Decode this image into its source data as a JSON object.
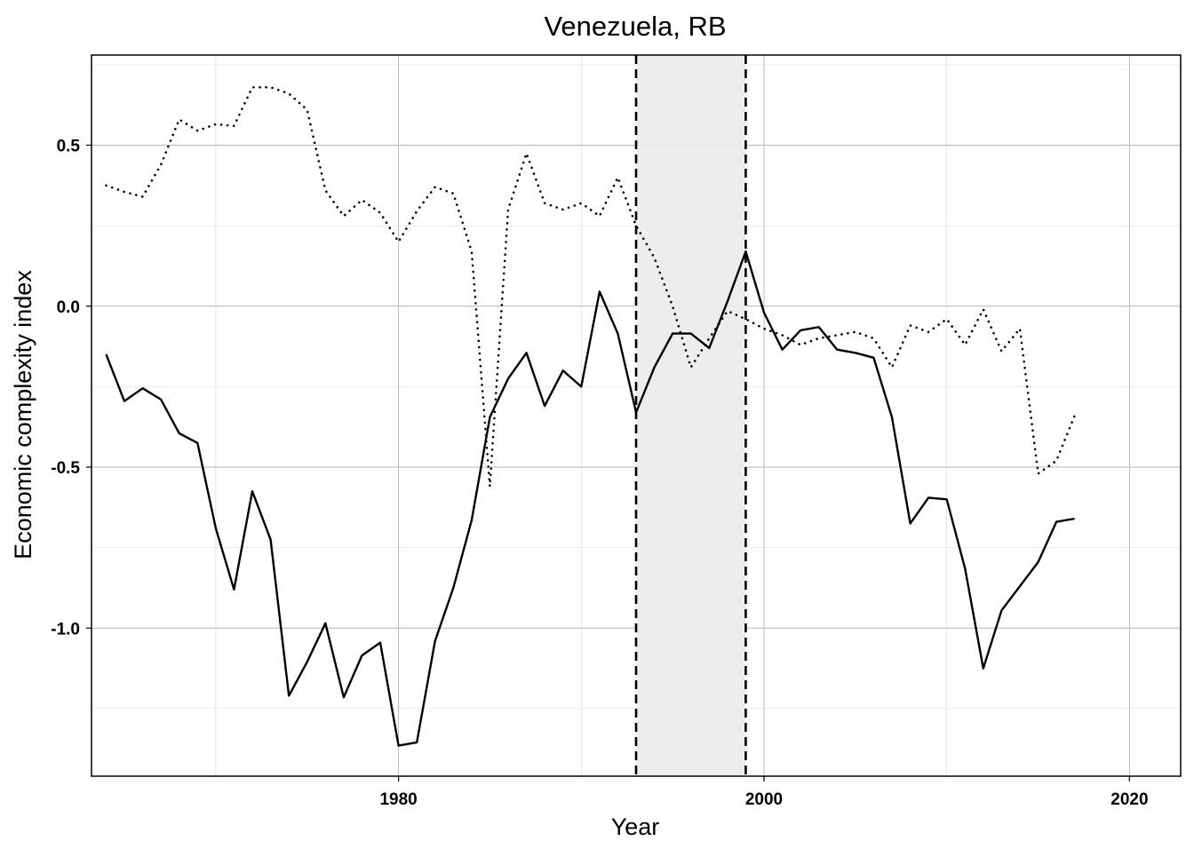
{
  "chart_data": {
    "type": "line",
    "title": "Venezuela, RB",
    "xlabel": "Year",
    "ylabel": "Economic complexity index",
    "xlim": [
      1963.2,
      2022.8
    ],
    "ylim": [
      -1.46,
      0.78
    ],
    "x_ticks": [
      1980,
      2000,
      2020
    ],
    "x_tick_labels": [
      "1980",
      "2000",
      "2020"
    ],
    "y_ticks": [
      0.5,
      0.0,
      -0.5,
      -1.0
    ],
    "y_tick_labels": [
      "0.5",
      "0.0",
      "-0.5",
      "-1.0"
    ],
    "grid": true,
    "legend": "none",
    "shaded_region": {
      "x_start": 1993.0,
      "x_end": 1999.0,
      "color": "#ebebeb",
      "border_style": "dashed"
    },
    "series": [
      {
        "style": "solid",
        "color": "#000000",
        "x": [
          1964,
          1965,
          1966,
          1967,
          1968,
          1969,
          1970,
          1971,
          1972,
          1973,
          1974,
          1975,
          1976,
          1977,
          1978,
          1979,
          1980,
          1981,
          1982,
          1983,
          1984,
          1985,
          1986,
          1987,
          1988,
          1989,
          1990,
          1991,
          1992,
          1993,
          1994,
          1995,
          1996,
          1997,
          1998,
          1999,
          2000,
          2001,
          2002,
          2003,
          2004,
          2005,
          2006,
          2007,
          2008,
          2009,
          2010,
          2011,
          2012,
          2013,
          2014,
          2015,
          2016,
          2017
        ],
        "y": [
          -0.15,
          -0.295,
          -0.255,
          -0.29,
          -0.395,
          -0.425,
          -0.69,
          -0.88,
          -0.575,
          -0.725,
          -1.21,
          -1.105,
          -0.985,
          -1.215,
          -1.085,
          -1.045,
          -1.365,
          -1.355,
          -1.04,
          -0.875,
          -0.665,
          -0.345,
          -0.225,
          -0.145,
          -0.31,
          -0.2,
          -0.25,
          0.045,
          -0.085,
          -0.33,
          -0.19,
          -0.085,
          -0.085,
          -0.13,
          0.015,
          0.17,
          -0.02,
          -0.135,
          -0.075,
          -0.065,
          -0.135,
          -0.145,
          -0.16,
          -0.345,
          -0.675,
          -0.595,
          -0.6,
          -0.815,
          -1.125,
          -0.945,
          -0.87,
          -0.795,
          -0.67,
          -0.66
        ]
      },
      {
        "style": "dotted",
        "color": "#000000",
        "x": [
          1964,
          1965,
          1966,
          1967,
          1968,
          1969,
          1970,
          1971,
          1972,
          1973,
          1974,
          1975,
          1976,
          1977,
          1978,
          1979,
          1980,
          1981,
          1982,
          1983,
          1984,
          1985,
          1986,
          1987,
          1988,
          1989,
          1990,
          1991,
          1992,
          1993,
          1994,
          1995,
          1996,
          1997,
          1998,
          1999,
          2000,
          2001,
          2002,
          2003,
          2004,
          2005,
          2006,
          2007,
          2008,
          2009,
          2010,
          2011,
          2012,
          2013,
          2014,
          2015,
          2016,
          2017
        ],
        "y": [
          0.375,
          0.355,
          0.34,
          0.44,
          0.58,
          0.545,
          0.565,
          0.56,
          0.68,
          0.68,
          0.66,
          0.61,
          0.36,
          0.28,
          0.33,
          0.29,
          0.2,
          0.295,
          0.37,
          0.35,
          0.17,
          -0.56,
          0.3,
          0.475,
          0.32,
          0.3,
          0.32,
          0.28,
          0.4,
          0.25,
          0.15,
          0.0,
          -0.19,
          -0.1,
          -0.015,
          -0.04,
          -0.07,
          -0.09,
          -0.12,
          -0.1,
          -0.09,
          -0.08,
          -0.1,
          -0.19,
          -0.06,
          -0.08,
          -0.04,
          -0.12,
          -0.01,
          -0.14,
          -0.07,
          -0.52,
          -0.48,
          -0.34
        ]
      }
    ]
  }
}
